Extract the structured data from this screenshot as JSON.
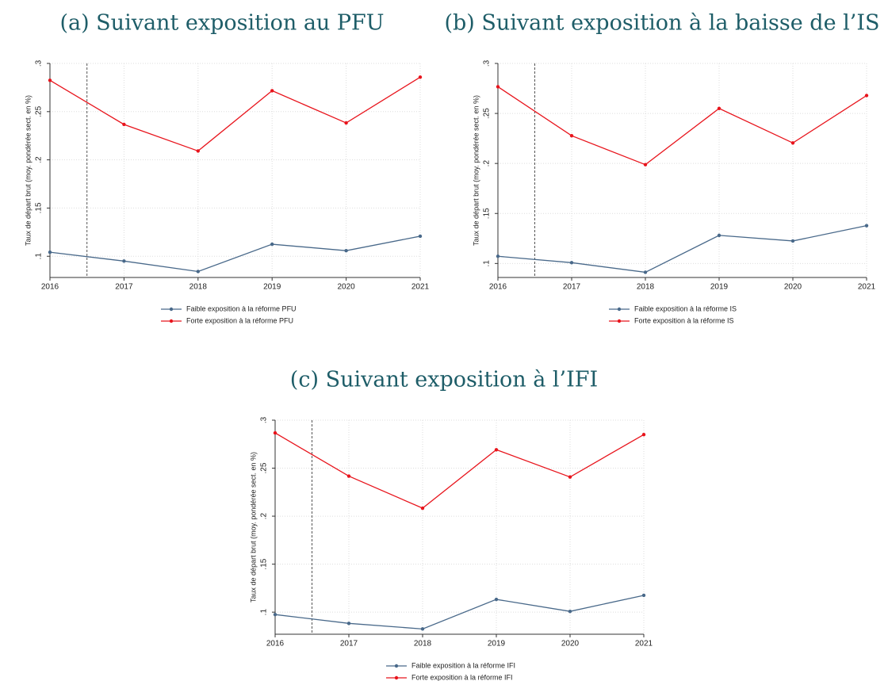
{
  "chart_data": [
    {
      "type": "line",
      "title": "(a) Suivant exposition au PFU",
      "ylabel": "Taux de départ brut (moy. pondérée sect. en %)",
      "x": [
        2016,
        2017,
        2018,
        2019,
        2020,
        2021
      ],
      "xlim": [
        2016,
        2021
      ],
      "xticks": [
        2016,
        2017,
        2018,
        2019,
        2020,
        2021
      ],
      "ylim": [
        0.078,
        0.3
      ],
      "yticks": [
        {
          "value": 0.1,
          "label": ".1"
        },
        {
          "value": 0.15,
          "label": ".15"
        },
        {
          "value": 0.2,
          "label": ".2"
        },
        {
          "value": 0.25,
          "label": ".25"
        },
        {
          "value": 0.3,
          "label": ".3"
        }
      ],
      "grid": true,
      "reference_line_x": 2016.5,
      "legend": "bottom",
      "series": [
        {
          "name": "Faible exposition à la réforme PFU",
          "color": "#49698a",
          "values": [
            0.1042,
            0.095,
            0.0842,
            0.1125,
            0.1058,
            0.1208
          ]
        },
        {
          "name": "Forte exposition à la réforme PFU",
          "color": "#e8141c",
          "values": [
            0.2825,
            0.2367,
            0.2092,
            0.2717,
            0.2383,
            0.2858
          ]
        }
      ]
    },
    {
      "type": "line",
      "title": "(b) Suivant exposition à la baisse de l’IS",
      "ylabel": "Taux de départ brut (moy. pondérée sect. en %)",
      "x": [
        2016,
        2017,
        2018,
        2019,
        2020,
        2021
      ],
      "xlim": [
        2016,
        2021
      ],
      "xticks": [
        2016,
        2017,
        2018,
        2019,
        2020,
        2021
      ],
      "ylim": [
        0.086,
        0.3
      ],
      "yticks": [
        {
          "value": 0.1,
          "label": ".1"
        },
        {
          "value": 0.15,
          "label": ".15"
        },
        {
          "value": 0.2,
          "label": ".2"
        },
        {
          "value": 0.25,
          "label": ".25"
        },
        {
          "value": 0.3,
          "label": ".3"
        }
      ],
      "grid": true,
      "reference_line_x": 2016.5,
      "legend": "bottom",
      "series": [
        {
          "name": "Faible exposition à la réforme IS",
          "color": "#49698a",
          "values": [
            0.1072,
            0.1008,
            0.0912,
            0.1281,
            0.1225,
            0.1378
          ]
        },
        {
          "name": "Forte exposition à la réforme IS",
          "color": "#e8141c",
          "values": [
            0.2767,
            0.2277,
            0.1988,
            0.255,
            0.2205,
            0.2679
          ]
        }
      ]
    },
    {
      "type": "line",
      "title": "(c) Suivant exposition à l’IFI",
      "ylabel": "Taux de départ brut (moy. pondérée sect. en %)",
      "x": [
        2016,
        2017,
        2018,
        2019,
        2020,
        2021
      ],
      "xlim": [
        2016,
        2021
      ],
      "xticks": [
        2016,
        2017,
        2018,
        2019,
        2020,
        2021
      ],
      "ylim": [
        0.077,
        0.3
      ],
      "yticks": [
        {
          "value": 0.1,
          "label": ".1"
        },
        {
          "value": 0.15,
          "label": ".15"
        },
        {
          "value": 0.2,
          "label": ".2"
        },
        {
          "value": 0.25,
          "label": ".25"
        },
        {
          "value": 0.3,
          "label": ".3"
        }
      ],
      "grid": true,
      "reference_line_x": 2016.5,
      "legend": "bottom",
      "series": [
        {
          "name": "Faible exposition à la réforme IFI",
          "color": "#49698a",
          "values": [
            0.0975,
            0.0883,
            0.0825,
            0.1133,
            0.1008,
            0.1175
          ]
        },
        {
          "name": "Forte exposition à la réforme IFI",
          "color": "#e8141c",
          "values": [
            0.2867,
            0.2417,
            0.2083,
            0.2692,
            0.2408,
            0.285
          ]
        }
      ]
    }
  ]
}
